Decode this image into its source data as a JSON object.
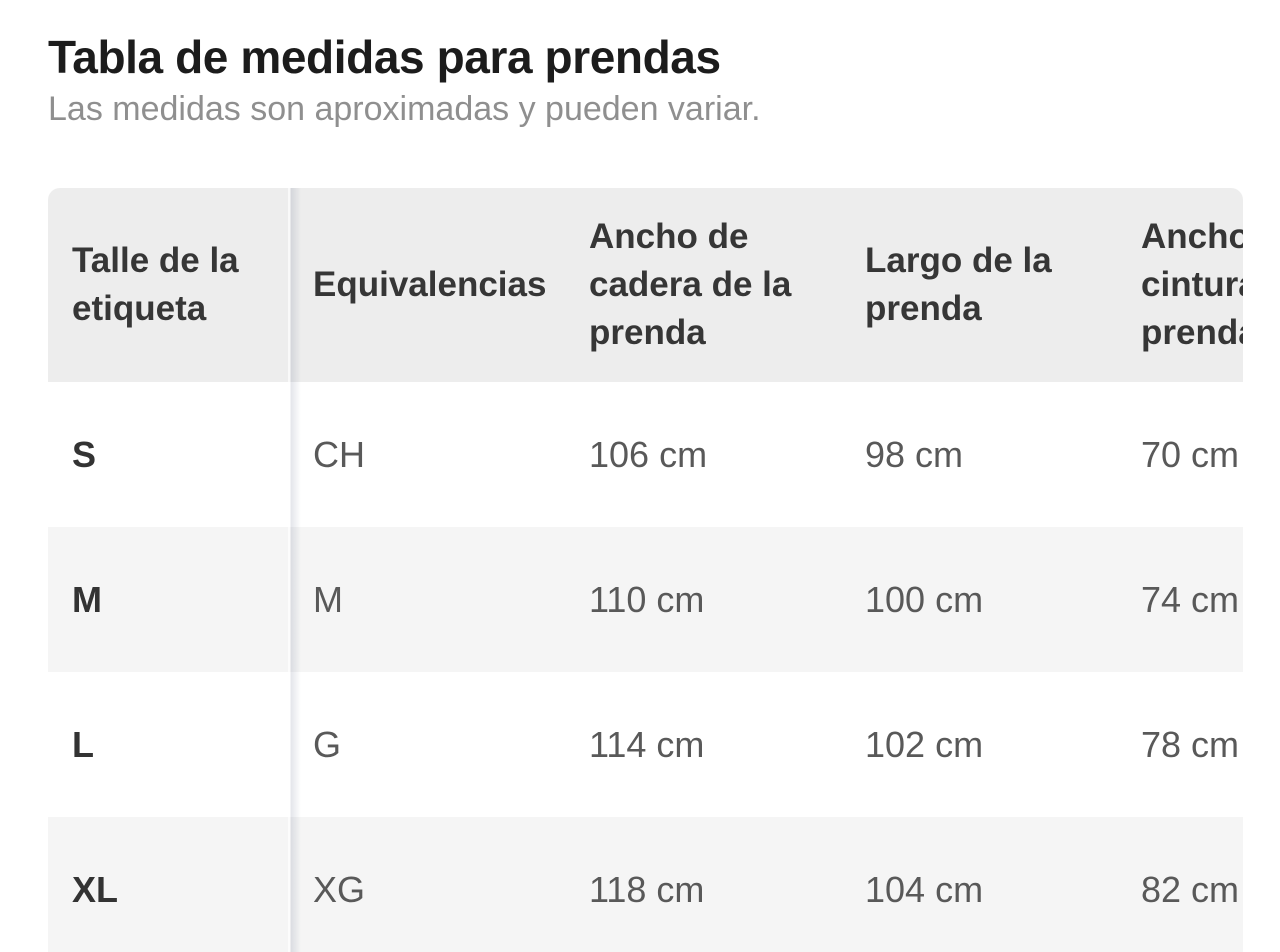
{
  "page": {
    "title": "Tabla de medidas para prendas",
    "subtitle": "Las medidas son aproximadas y pueden variar."
  },
  "size_chart": {
    "columns": [
      "Talle de la etiqueta",
      "Equivalencias",
      "Ancho de cadera de la prenda",
      "Largo de la prenda",
      "Ancho de cintura de la prenda"
    ],
    "rows": [
      {
        "label": "S",
        "equivalence": "CH",
        "hip_width": "106 cm",
        "garment_length": "98 cm",
        "waist_width": "70 cm"
      },
      {
        "label": "M",
        "equivalence": "M",
        "hip_width": "110 cm",
        "garment_length": "100 cm",
        "waist_width": "74 cm"
      },
      {
        "label": "L",
        "equivalence": "G",
        "hip_width": "114 cm",
        "garment_length": "102 cm",
        "waist_width": "78 cm"
      },
      {
        "label": "XL",
        "equivalence": "XG",
        "hip_width": "118 cm",
        "garment_length": "104 cm",
        "waist_width": "82 cm"
      }
    ]
  },
  "colors": {
    "header_bg": "#ededed",
    "row_alt_bg": "#f5f5f5",
    "title_text": "#1c1c1c",
    "subtitle_text": "#8f8f8f",
    "header_text": "#363636",
    "value_text": "#595959"
  }
}
